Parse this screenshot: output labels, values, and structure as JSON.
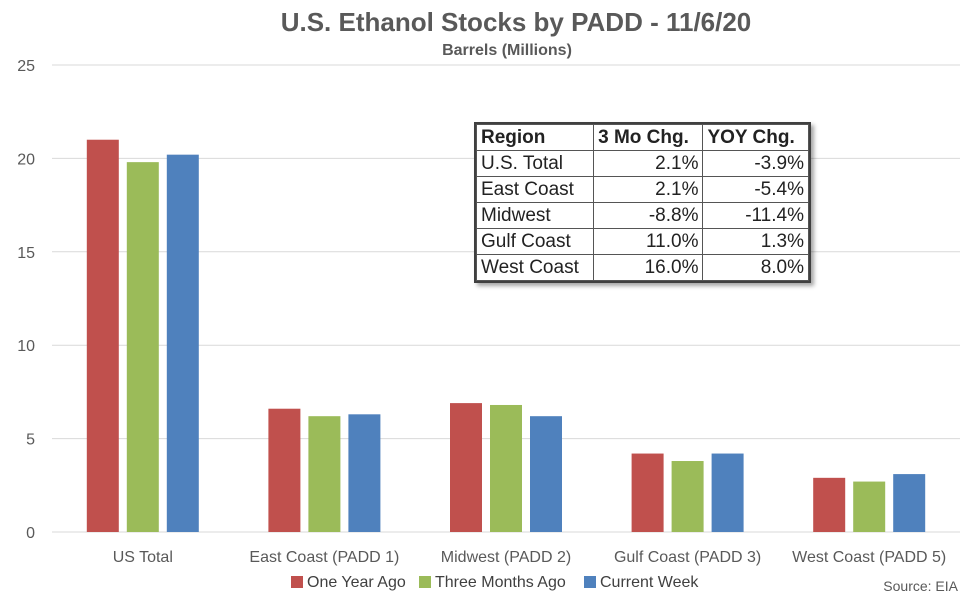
{
  "chart_data": {
    "type": "bar",
    "title": "U.S. Ethanol Stocks by PADD - 11/6/20",
    "subtitle": "Barrels (Millions)",
    "categories": [
      "US Total",
      "East Coast (PADD 1)",
      "Midwest (PADD 2)",
      "Gulf Coast (PADD 3)",
      "West Coast (PADD 5)"
    ],
    "series": [
      {
        "name": "One Year Ago",
        "color": "#c0504d",
        "values": [
          21.0,
          6.6,
          6.9,
          4.2,
          2.9
        ]
      },
      {
        "name": "Three Months Ago",
        "color": "#9bbb59",
        "values": [
          19.8,
          6.2,
          6.8,
          3.8,
          2.7
        ]
      },
      {
        "name": "Current Week",
        "color": "#4f81bd",
        "values": [
          20.2,
          6.3,
          6.2,
          4.2,
          3.1
        ]
      }
    ],
    "ylim": [
      0,
      25
    ],
    "yticks": [
      0,
      5,
      10,
      15,
      20,
      25
    ],
    "grid": true,
    "legend": "bottom",
    "source": "Source: EIA"
  },
  "table": {
    "headers": [
      "Region",
      "3 Mo Chg.",
      "YOY Chg."
    ],
    "rows": [
      [
        "U.S. Total",
        "2.1%",
        "-3.9%"
      ],
      [
        "East Coast",
        "2.1%",
        "-5.4%"
      ],
      [
        "Midwest",
        "-8.8%",
        "-11.4%"
      ],
      [
        "Gulf Coast",
        "11.0%",
        "1.3%"
      ],
      [
        "West Coast",
        "16.0%",
        "8.0%"
      ]
    ]
  }
}
